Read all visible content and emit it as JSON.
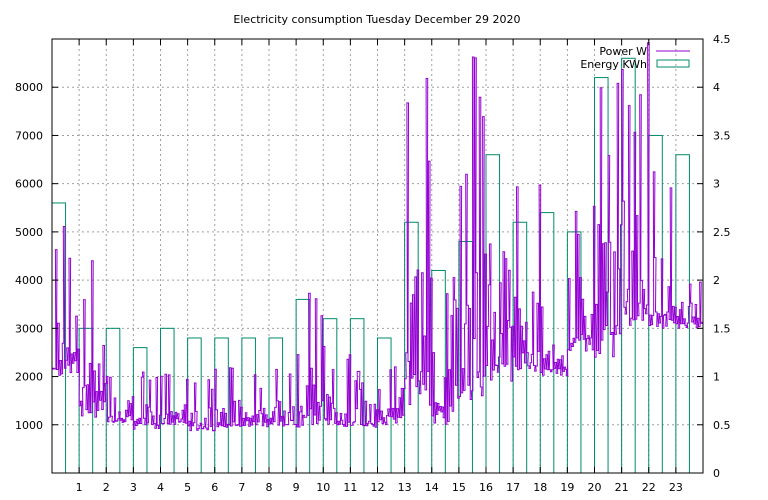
{
  "chart_data": {
    "type": "bar",
    "title": "Electricity consumption Tuesday December 29 2020",
    "grid": true,
    "legend_position": "top-right",
    "x_axis": {
      "range": [
        0,
        24
      ],
      "ticks": [
        "1",
        "2",
        "3",
        "4",
        "5",
        "6",
        "7",
        "8",
        "9",
        "10",
        "11",
        "12",
        "13",
        "14",
        "15",
        "16",
        "17",
        "18",
        "19",
        "20",
        "21",
        "22",
        "23"
      ]
    },
    "y_left": {
      "range": [
        0,
        9000
      ],
      "ticks": [
        "1000",
        "2000",
        "3000",
        "4000",
        "5000",
        "6000",
        "7000",
        "8000"
      ]
    },
    "y_right": {
      "range": [
        0,
        4.5
      ],
      "ticks": [
        "0",
        "0.5",
        "1",
        "1.5",
        "2",
        "2.5",
        "3",
        "3.5",
        "4",
        "4.5"
      ]
    },
    "series": [
      {
        "name": "Power W",
        "type": "line",
        "axis": "left",
        "color": "#9400d3",
        "hour_ranges": [
          [
            2000,
            5150
          ],
          [
            1150,
            4500
          ],
          [
            1050,
            2400
          ],
          [
            900,
            2150
          ],
          [
            1000,
            2250
          ],
          [
            850,
            2050
          ],
          [
            950,
            2250
          ],
          [
            950,
            2200
          ],
          [
            950,
            2250
          ],
          [
            950,
            4800
          ],
          [
            950,
            2800
          ],
          [
            950,
            2250
          ],
          [
            1000,
            2800
          ],
          [
            1300,
            9000
          ],
          [
            1000,
            4500
          ],
          [
            1300,
            9000
          ],
          [
            1900,
            5200
          ],
          [
            2100,
            6000
          ],
          [
            2000,
            3600
          ],
          [
            2500,
            6000
          ],
          [
            2400,
            9000
          ],
          [
            3000,
            9000
          ],
          [
            3000,
            6300
          ],
          [
            3000,
            4250
          ]
        ]
      },
      {
        "name": "Energy KWh",
        "type": "bar",
        "axis": "right",
        "color": "#008b6b",
        "hours": [
          0,
          1,
          2,
          3,
          4,
          5,
          6,
          7,
          8,
          9,
          10,
          11,
          12,
          13,
          14,
          15,
          16,
          17,
          18,
          19,
          20,
          21,
          22,
          23
        ],
        "values": [
          2.8,
          1.5,
          1.5,
          1.3,
          1.5,
          1.4,
          1.4,
          1.4,
          1.4,
          1.8,
          1.6,
          1.6,
          1.4,
          2.6,
          2.1,
          2.4,
          3.3,
          2.6,
          2.7,
          2.5,
          4.1,
          4.3,
          3.5,
          3.3
        ]
      }
    ]
  }
}
